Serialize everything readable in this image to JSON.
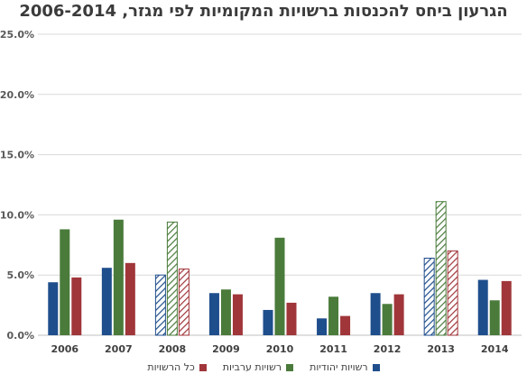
{
  "chart_data": {
    "type": "bar",
    "title": "הגרעון ביחס להכנסות ברשויות המקומיות לפי מגזר, 2006-2014",
    "categories": [
      "2006",
      "2007",
      "2008",
      "2009",
      "2010",
      "2011",
      "2012",
      "2013",
      "2014"
    ],
    "series": [
      {
        "name": "רשויות יהודיות",
        "color": "#1f4e8c",
        "values": [
          4.4,
          5.6,
          5.0,
          3.5,
          2.1,
          1.4,
          3.5,
          6.4,
          4.6
        ]
      },
      {
        "name": "רשויות ערביות",
        "color": "#4a7b3b",
        "values": [
          8.8,
          9.6,
          9.4,
          3.8,
          8.1,
          3.2,
          2.6,
          11.1,
          2.9
        ]
      },
      {
        "name": "כל הרשויות",
        "color": "#a0363a",
        "values": [
          4.8,
          6.0,
          5.5,
          3.4,
          2.7,
          1.6,
          3.4,
          7.0,
          4.5
        ]
      }
    ],
    "hatched_categories": [
      "2008",
      "2013"
    ],
    "ytick_labels": [
      "0.0%",
      "5.0%",
      "10.0%",
      "15.0%",
      "20.0%",
      "25.0%"
    ],
    "ylim": [
      0,
      25
    ],
    "grid": true,
    "legend_position": "bottom"
  }
}
